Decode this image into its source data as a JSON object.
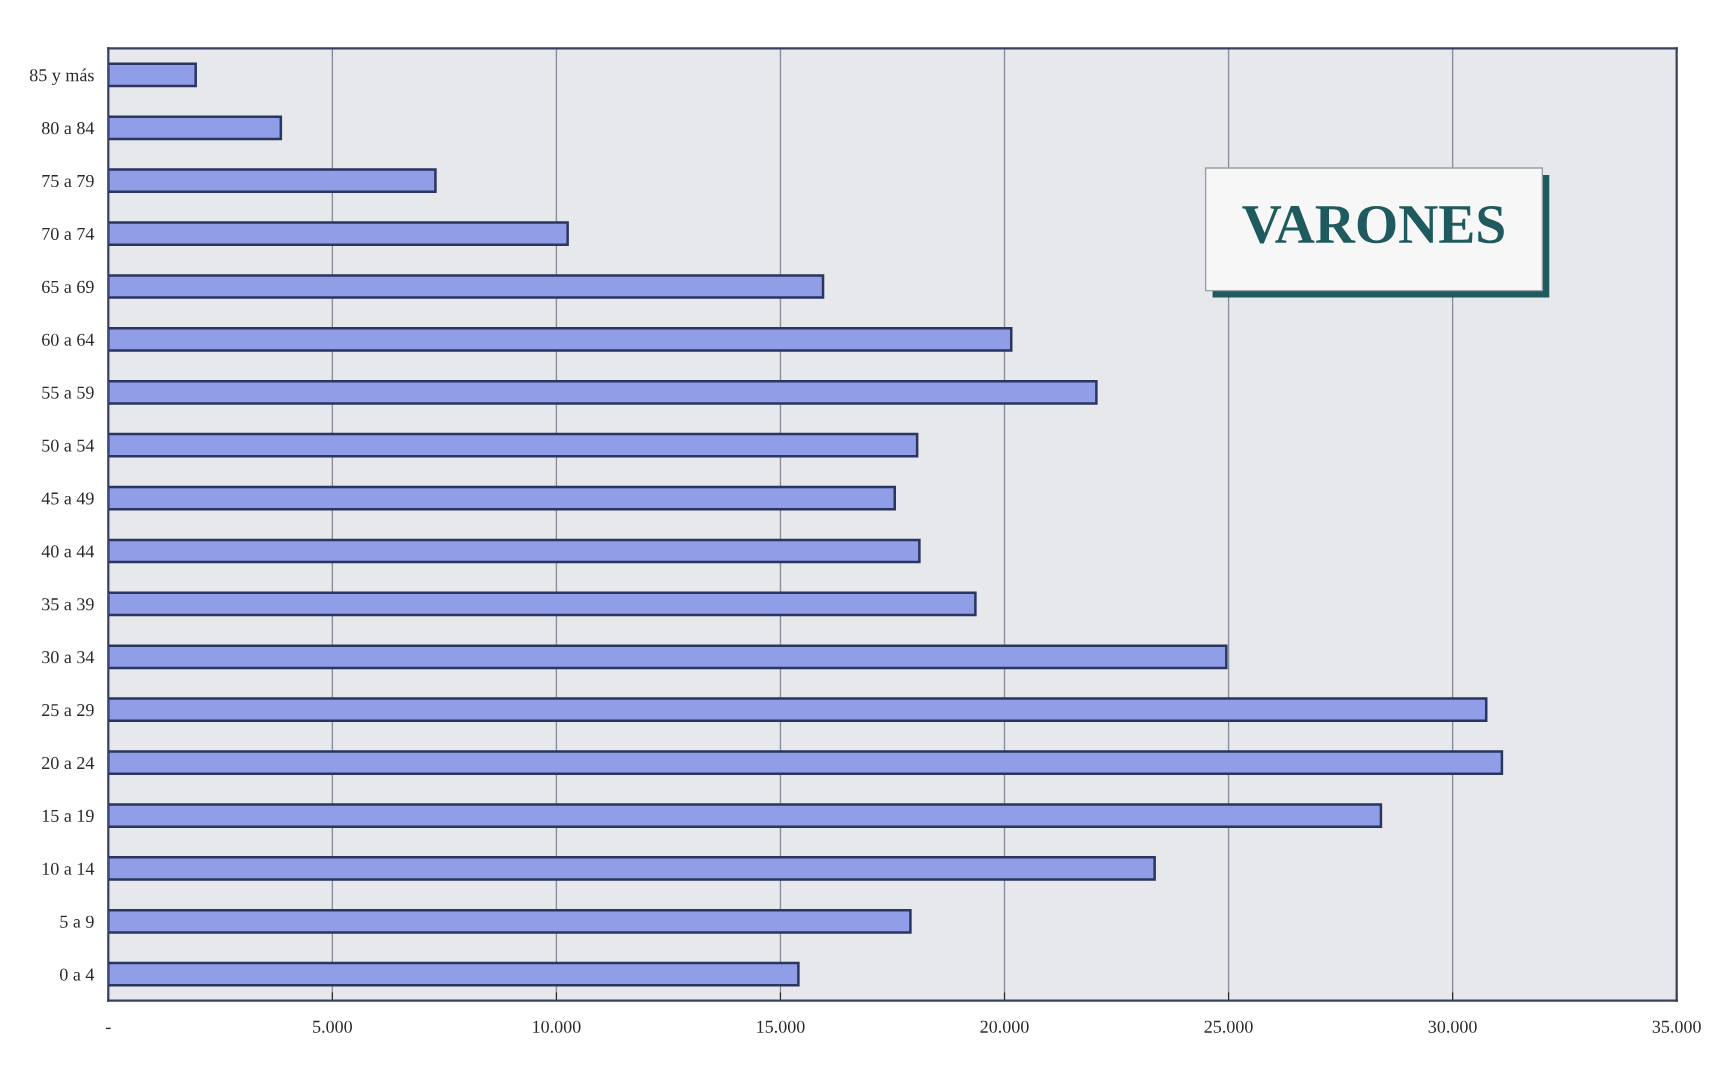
{
  "chart_data": {
    "type": "bar",
    "orientation": "horizontal",
    "title": "VARONES",
    "categories": [
      "85 y más",
      "80 a 84",
      "75 a 79",
      "70 a 74",
      "65 a 69",
      "60 a 64",
      "55 a 59",
      "50 a 54",
      "45 a 49",
      "40 a 44",
      "35 a 39",
      "30 a 34",
      "25 a 29",
      "20 a 24",
      "15 a 19",
      "10 a 14",
      "5 a 9",
      "0 a 4"
    ],
    "values": [
      1950,
      3850,
      7300,
      10250,
      15950,
      20150,
      22050,
      18050,
      17550,
      18100,
      19350,
      24950,
      30750,
      31100,
      28400,
      23350,
      17900,
      15400
    ],
    "color": "#8f9ee6",
    "xlim": [
      0,
      35000
    ],
    "xticks": [
      {
        "value": 0,
        "label": "-"
      },
      {
        "value": 5000,
        "label": "5.000"
      },
      {
        "value": 10000,
        "label": "10.000"
      },
      {
        "value": 15000,
        "label": "15.000"
      },
      {
        "value": 20000,
        "label": "20.000"
      },
      {
        "value": 25000,
        "label": "25.000"
      },
      {
        "value": 30000,
        "label": "30.000"
      },
      {
        "value": 35000,
        "label": "35.000"
      }
    ],
    "grid": "x"
  }
}
